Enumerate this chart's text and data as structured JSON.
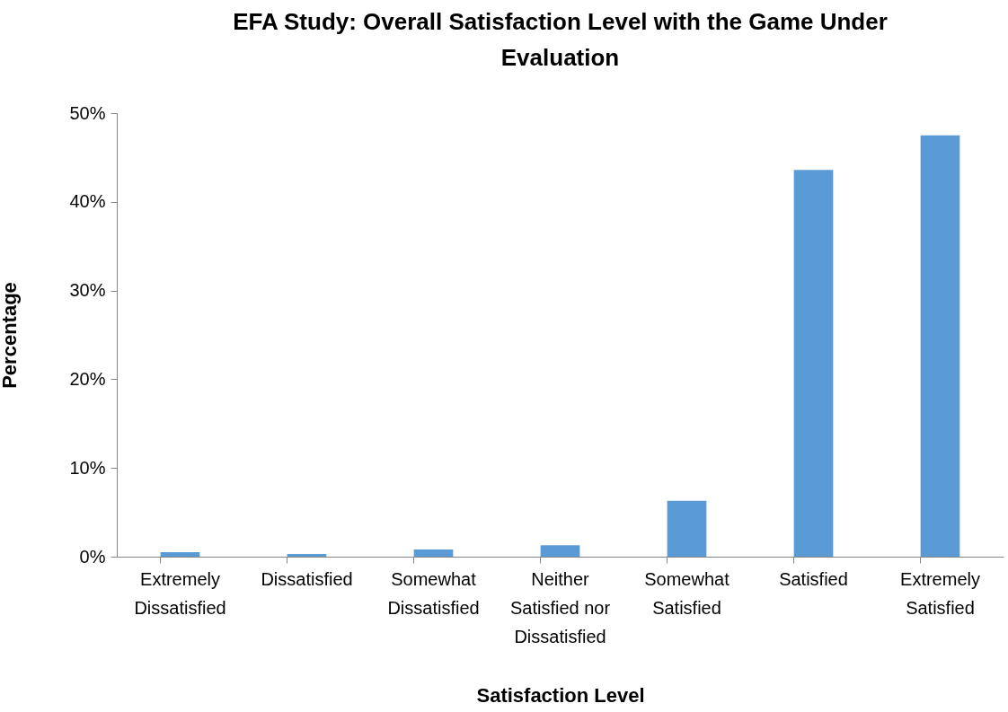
{
  "chart_data": {
    "type": "bar",
    "title": "EFA Study: Overall Satisfaction Level with the Game Under Evaluation",
    "xlabel": "Satisfaction Level",
    "ylabel": "Percentage",
    "categories": [
      "Extremely Dissatisfied",
      "Dissatisfied",
      "Somewhat Dissatisfied",
      "Neither Satisfied nor Dissatisfied",
      "Somewhat Satisfied",
      "Satisfied",
      "Extremely Satisfied"
    ],
    "values": [
      0.5,
      0.3,
      0.8,
      1.3,
      6.3,
      43.6,
      47.5
    ],
    "color": "#5b9bd5",
    "ylim": [
      0,
      50
    ],
    "yticks": [
      {
        "value": 0,
        "label": "0%"
      },
      {
        "value": 10,
        "label": "10%"
      },
      {
        "value": 20,
        "label": "20%"
      },
      {
        "value": 30,
        "label": "30%"
      },
      {
        "value": 40,
        "label": "40%"
      },
      {
        "value": 50,
        "label": "50%"
      }
    ],
    "grid": false
  }
}
